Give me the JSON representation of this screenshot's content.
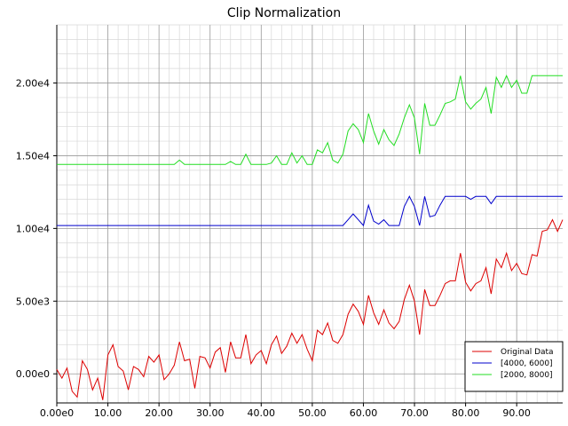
{
  "chart_data": {
    "type": "line",
    "title": "Clip Normalization",
    "xlabel": "",
    "ylabel": "",
    "xlim": [
      0,
      99
    ],
    "ylim": [
      -2000,
      24000
    ],
    "x_ticks": [
      0,
      10,
      20,
      30,
      40,
      50,
      60,
      70,
      80,
      90
    ],
    "x_tick_labels": [
      "0.00e0",
      "10.00",
      "20.00",
      "30.00",
      "40.00",
      "50.00",
      "60.00",
      "70.00",
      "80.00",
      "90.00"
    ],
    "y_ticks": [
      0,
      5000,
      10000,
      15000,
      20000
    ],
    "y_tick_labels": [
      "0.00e0",
      "5.00e3",
      "1.00e4",
      "1.50e4",
      "2.00e4"
    ],
    "grid": true,
    "legend_position": "bottom-right",
    "series": [
      {
        "name": "Original Data",
        "color": "#dd0000",
        "values": [
          300,
          -300,
          400,
          -1200,
          -1600,
          900,
          300,
          -1100,
          -300,
          -1800,
          1300,
          2000,
          500,
          200,
          -1100,
          500,
          300,
          -200,
          1200,
          800,
          1300,
          -400,
          0,
          600,
          2200,
          900,
          1000,
          -1000,
          1200,
          1100,
          400,
          1500,
          1800,
          100,
          2200,
          1100,
          1100,
          2700,
          700,
          1300,
          1600,
          700,
          2000,
          2600,
          1400,
          1900,
          2800,
          2100,
          2700,
          1700,
          900,
          3000,
          2700,
          3500,
          2300,
          2100,
          2700,
          4100,
          4800,
          4300,
          3400,
          5400,
          4200,
          3400,
          4400,
          3500,
          3100,
          3600,
          5100,
          6100,
          5000,
          2700,
          5800,
          4700,
          4700,
          5400,
          6200,
          6400,
          6400,
          8300,
          6300,
          5700,
          6200,
          6400,
          7300,
          5500,
          7900,
          7300,
          8300,
          7100,
          7600,
          6900,
          6800,
          8200,
          8100,
          9800,
          9900,
          10600,
          9800,
          10600
        ]
      },
      {
        "name": "[4000, 6000]",
        "color": "#0000cc",
        "values": [
          10200,
          10200,
          10200,
          10200,
          10200,
          10200,
          10200,
          10200,
          10200,
          10200,
          10200,
          10200,
          10200,
          10200,
          10200,
          10200,
          10200,
          10200,
          10200,
          10200,
          10200,
          10200,
          10200,
          10200,
          10200,
          10200,
          10200,
          10200,
          10200,
          10200,
          10200,
          10200,
          10200,
          10200,
          10200,
          10200,
          10200,
          10200,
          10200,
          10200,
          10200,
          10200,
          10200,
          10200,
          10200,
          10200,
          10200,
          10200,
          10200,
          10200,
          10200,
          10200,
          10200,
          10200,
          10200,
          10200,
          10200,
          10600,
          11000,
          10600,
          10200,
          11600,
          10500,
          10300,
          10600,
          10200,
          10200,
          10200,
          11500,
          12200,
          11500,
          10200,
          12200,
          10800,
          10900,
          11600,
          12200,
          12200,
          12200,
          12200,
          12200,
          12000,
          12200,
          12200,
          12200,
          11700,
          12200,
          12200,
          12200,
          12200,
          12200,
          12200,
          12200,
          12200,
          12200,
          12200,
          12200,
          12200,
          12200,
          12200
        ]
      },
      {
        "name": "[2000, 8000]",
        "color": "#22dd22",
        "values": [
          14400,
          14400,
          14400,
          14400,
          14400,
          14400,
          14400,
          14400,
          14400,
          14400,
          14400,
          14400,
          14400,
          14400,
          14400,
          14400,
          14400,
          14400,
          14400,
          14400,
          14400,
          14400,
          14400,
          14400,
          14700,
          14400,
          14400,
          14400,
          14400,
          14400,
          14400,
          14400,
          14400,
          14400,
          14600,
          14400,
          14400,
          15100,
          14400,
          14400,
          14400,
          14400,
          14500,
          15000,
          14400,
          14400,
          15200,
          14500,
          15000,
          14400,
          14400,
          15400,
          15200,
          15900,
          14700,
          14500,
          15100,
          16700,
          17200,
          16800,
          15900,
          17900,
          16700,
          15800,
          16800,
          16100,
          15700,
          16500,
          17600,
          18500,
          17600,
          15100,
          18600,
          17100,
          17100,
          17800,
          18600,
          18700,
          18900,
          20500,
          18700,
          18200,
          18600,
          18900,
          19700,
          17900,
          20400,
          19700,
          20500,
          19700,
          20200,
          19300,
          19300,
          20500,
          20500,
          20500,
          20500,
          20500,
          20500,
          20500
        ]
      }
    ]
  }
}
